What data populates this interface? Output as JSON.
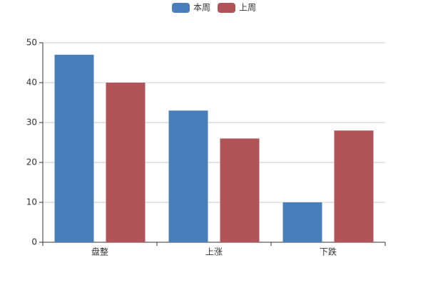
{
  "chart_data": {
    "type": "bar",
    "categories": [
      "盘整",
      "上涨",
      "下跌"
    ],
    "series": [
      {
        "name": "本周",
        "color": "#4a7ebb",
        "values": [
          47,
          33,
          10
        ]
      },
      {
        "name": "上周",
        "color": "#b05459",
        "values": [
          40,
          26,
          28
        ]
      }
    ],
    "ylim": [
      0,
      50
    ],
    "yticks": [
      0,
      10,
      20,
      30,
      40,
      50
    ],
    "grid": true,
    "legend": "top"
  }
}
